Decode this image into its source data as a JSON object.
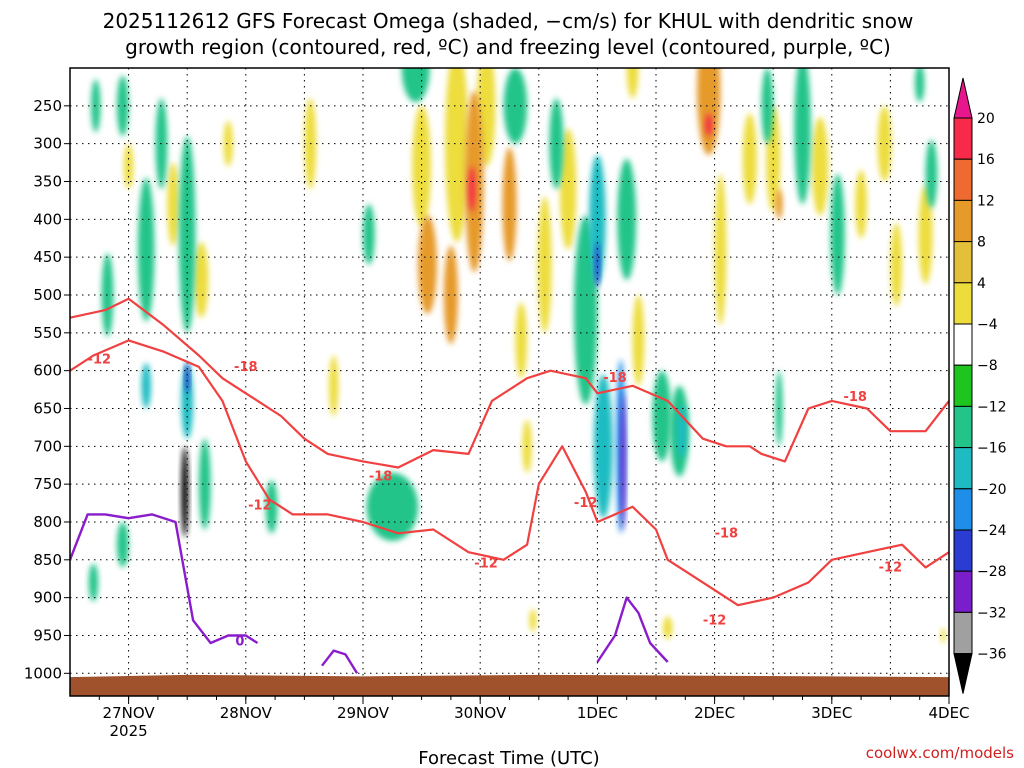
{
  "chart_data": {
    "type": "heatmap",
    "title_line1": "2025112612 GFS Forecast Omega (shaded, −cm/s) for KHUL with dendritic snow",
    "title_line2": "growth region (contoured, red, ºC) and freezing level (contoured, purple, ºC)",
    "xlabel": "Forecast Time (UTC)",
    "credit": "coolwx.com/models",
    "x_ticks": [
      {
        "label": "27NOV",
        "sub": "2025",
        "day": 27
      },
      {
        "label": "28NOV",
        "sub": "",
        "day": 28
      },
      {
        "label": "29NOV",
        "sub": "",
        "day": 29
      },
      {
        "label": "30NOV",
        "sub": "",
        "day": 30
      },
      {
        "label": "1DEC",
        "sub": "",
        "day": 31
      },
      {
        "label": "2DEC",
        "sub": "",
        "day": 32
      },
      {
        "label": "3DEC",
        "sub": "",
        "day": 33
      },
      {
        "label": "4DEC",
        "sub": "",
        "day": 34
      }
    ],
    "xlim": [
      26.5,
      34.0
    ],
    "y_ticks": [
      250,
      300,
      350,
      400,
      450,
      500,
      550,
      600,
      650,
      700,
      750,
      800,
      850,
      900,
      950,
      1000
    ],
    "ylim": [
      1030,
      200
    ],
    "colorbar": {
      "labels": [
        "20",
        "16",
        "12",
        "8",
        "4",
        "−4",
        "−8",
        "−12",
        "−16",
        "−20",
        "−24",
        "−28",
        "−32",
        "−36"
      ],
      "colors": [
        "#f72a4a",
        "#ee6a30",
        "#e69a2a",
        "#e3bf3a",
        "#eddd3c",
        "#ffffff",
        "#1ec51e",
        "#22c48a",
        "#1ebcc2",
        "#1e8ee8",
        "#2a3cd2",
        "#7a1ecc",
        "#9c10c8",
        "#a0a0a0"
      ],
      "top_color": "#e8168c",
      "bottom_color": "#000000"
    },
    "omega_blobs": [
      {
        "x": 26.72,
        "p": 250,
        "w": 0.04,
        "h": 70,
        "v": -8
      },
      {
        "x": 26.82,
        "p": 500,
        "w": 0.05,
        "h": 110,
        "v": -8
      },
      {
        "x": 26.95,
        "p": 250,
        "w": 0.05,
        "h": 80,
        "v": -8
      },
      {
        "x": 27.0,
        "p": 330,
        "w": 0.04,
        "h": 60,
        "v": 6
      },
      {
        "x": 27.15,
        "p": 440,
        "w": 0.07,
        "h": 190,
        "v": -8
      },
      {
        "x": 27.28,
        "p": 300,
        "w": 0.05,
        "h": 120,
        "v": -8
      },
      {
        "x": 27.38,
        "p": 380,
        "w": 0.05,
        "h": 110,
        "v": 6
      },
      {
        "x": 27.5,
        "p": 420,
        "w": 0.07,
        "h": 260,
        "v": -8
      },
      {
        "x": 27.5,
        "p": 640,
        "w": 0.05,
        "h": 100,
        "v": -12
      },
      {
        "x": 27.48,
        "p": 760,
        "w": 0.03,
        "h": 120,
        "v": -36
      },
      {
        "x": 27.5,
        "p": 610,
        "w": 0.02,
        "h": 40,
        "v": -20
      },
      {
        "x": 27.62,
        "p": 480,
        "w": 0.06,
        "h": 100,
        "v": 6
      },
      {
        "x": 27.65,
        "p": 750,
        "w": 0.05,
        "h": 120,
        "v": -8
      },
      {
        "x": 27.85,
        "p": 300,
        "w": 0.04,
        "h": 60,
        "v": 6
      },
      {
        "x": 27.15,
        "p": 620,
        "w": 0.04,
        "h": 60,
        "v": -12
      },
      {
        "x": 28.22,
        "p": 780,
        "w": 0.05,
        "h": 70,
        "v": -8
      },
      {
        "x": 28.55,
        "p": 300,
        "w": 0.05,
        "h": 120,
        "v": 6
      },
      {
        "x": 28.75,
        "p": 620,
        "w": 0.04,
        "h": 80,
        "v": 6
      },
      {
        "x": 29.05,
        "p": 420,
        "w": 0.05,
        "h": 80,
        "v": -8
      },
      {
        "x": 29.25,
        "p": 780,
        "w": 0.22,
        "h": 90,
        "v": -8
      },
      {
        "x": 29.5,
        "p": 330,
        "w": 0.08,
        "h": 160,
        "v": 6
      },
      {
        "x": 29.55,
        "p": 460,
        "w": 0.08,
        "h": 130,
        "v": 10
      },
      {
        "x": 29.45,
        "p": 200,
        "w": 0.12,
        "h": 90,
        "v": -8
      },
      {
        "x": 29.8,
        "p": 300,
        "w": 0.1,
        "h": 260,
        "v": 6
      },
      {
        "x": 29.75,
        "p": 500,
        "w": 0.06,
        "h": 130,
        "v": 10
      },
      {
        "x": 29.95,
        "p": 350,
        "w": 0.08,
        "h": 240,
        "v": 10
      },
      {
        "x": 29.93,
        "p": 360,
        "w": 0.03,
        "h": 60,
        "v": 16
      },
      {
        "x": 30.05,
        "p": 250,
        "w": 0.08,
        "h": 160,
        "v": 6
      },
      {
        "x": 30.25,
        "p": 380,
        "w": 0.06,
        "h": 150,
        "v": 10
      },
      {
        "x": 30.3,
        "p": 250,
        "w": 0.1,
        "h": 100,
        "v": -8
      },
      {
        "x": 30.35,
        "p": 560,
        "w": 0.05,
        "h": 100,
        "v": 6
      },
      {
        "x": 30.55,
        "p": 460,
        "w": 0.06,
        "h": 180,
        "v": 6
      },
      {
        "x": 30.4,
        "p": 700,
        "w": 0.04,
        "h": 70,
        "v": 6
      },
      {
        "x": 30.65,
        "p": 300,
        "w": 0.06,
        "h": 120,
        "v": -8
      },
      {
        "x": 30.75,
        "p": 360,
        "w": 0.07,
        "h": 160,
        "v": 6
      },
      {
        "x": 30.9,
        "p": 520,
        "w": 0.1,
        "h": 250,
        "v": -8
      },
      {
        "x": 31.0,
        "p": 400,
        "w": 0.07,
        "h": 170,
        "v": -12
      },
      {
        "x": 31.05,
        "p": 700,
        "w": 0.08,
        "h": 190,
        "v": -12
      },
      {
        "x": 31.0,
        "p": 460,
        "w": 0.02,
        "h": 60,
        "v": -20
      },
      {
        "x": 31.2,
        "p": 700,
        "w": 0.04,
        "h": 230,
        "v": -16
      },
      {
        "x": 31.22,
        "p": 720,
        "w": 0.02,
        "h": 180,
        "v": -24
      },
      {
        "x": 31.25,
        "p": 400,
        "w": 0.08,
        "h": 160,
        "v": -8
      },
      {
        "x": 31.3,
        "p": 200,
        "w": 0.05,
        "h": 80,
        "v": 6
      },
      {
        "x": 31.35,
        "p": 560,
        "w": 0.05,
        "h": 120,
        "v": 6
      },
      {
        "x": 31.55,
        "p": 660,
        "w": 0.08,
        "h": 120,
        "v": -8
      },
      {
        "x": 31.7,
        "p": 680,
        "w": 0.08,
        "h": 120,
        "v": -8
      },
      {
        "x": 31.72,
        "p": 680,
        "w": 0.04,
        "h": 70,
        "v": -12
      },
      {
        "x": 31.95,
        "p": 230,
        "w": 0.1,
        "h": 170,
        "v": 10
      },
      {
        "x": 31.95,
        "p": 275,
        "w": 0.03,
        "h": 30,
        "v": 16
      },
      {
        "x": 32.05,
        "p": 440,
        "w": 0.05,
        "h": 200,
        "v": 6
      },
      {
        "x": 32.3,
        "p": 320,
        "w": 0.06,
        "h": 120,
        "v": 6
      },
      {
        "x": 32.45,
        "p": 250,
        "w": 0.05,
        "h": 100,
        "v": -8
      },
      {
        "x": 32.5,
        "p": 320,
        "w": 0.06,
        "h": 140,
        "v": 6
      },
      {
        "x": 32.55,
        "p": 650,
        "w": 0.03,
        "h": 100,
        "v": -8
      },
      {
        "x": 32.55,
        "p": 380,
        "w": 0.03,
        "h": 40,
        "v": 10
      },
      {
        "x": 32.75,
        "p": 280,
        "w": 0.07,
        "h": 200,
        "v": -8
      },
      {
        "x": 32.9,
        "p": 330,
        "w": 0.07,
        "h": 130,
        "v": 6
      },
      {
        "x": 33.05,
        "p": 420,
        "w": 0.06,
        "h": 160,
        "v": -8
      },
      {
        "x": 33.25,
        "p": 380,
        "w": 0.05,
        "h": 90,
        "v": 6
      },
      {
        "x": 33.45,
        "p": 300,
        "w": 0.06,
        "h": 100,
        "v": 6
      },
      {
        "x": 33.55,
        "p": 460,
        "w": 0.05,
        "h": 110,
        "v": 6
      },
      {
        "x": 33.8,
        "p": 420,
        "w": 0.06,
        "h": 130,
        "v": 6
      },
      {
        "x": 33.75,
        "p": 220,
        "w": 0.04,
        "h": 50,
        "v": -8
      },
      {
        "x": 33.85,
        "p": 340,
        "w": 0.05,
        "h": 90,
        "v": -8
      },
      {
        "x": 33.95,
        "p": 950,
        "w": 0.02,
        "h": 20,
        "v": 6
      },
      {
        "x": 26.7,
        "p": 880,
        "w": 0.04,
        "h": 50,
        "v": -8
      },
      {
        "x": 26.95,
        "p": 830,
        "w": 0.05,
        "h": 60,
        "v": -8
      },
      {
        "x": 31.6,
        "p": 940,
        "w": 0.04,
        "h": 30,
        "v": 6
      },
      {
        "x": 30.45,
        "p": 930,
        "w": 0.03,
        "h": 30,
        "v": 6
      }
    ],
    "dgz_contours": [
      {
        "label": "-18",
        "label_x": 28.0,
        "label_p": 595,
        "points": [
          [
            26.5,
            530
          ],
          [
            26.8,
            520
          ],
          [
            27.0,
            505
          ],
          [
            27.3,
            540
          ],
          [
            27.6,
            580
          ],
          [
            27.8,
            610
          ],
          [
            28.0,
            630
          ],
          [
            28.3,
            660
          ],
          [
            28.5,
            690
          ],
          [
            28.7,
            710
          ],
          [
            29.0,
            720
          ],
          [
            29.3,
            728
          ],
          [
            29.6,
            705
          ],
          [
            29.9,
            710
          ],
          [
            30.1,
            640
          ],
          [
            30.4,
            610
          ],
          [
            30.6,
            600
          ],
          [
            30.9,
            610
          ],
          [
            31.0,
            630
          ],
          [
            31.3,
            620
          ],
          [
            31.6,
            640
          ],
          [
            31.9,
            690
          ],
          [
            32.1,
            700
          ],
          [
            32.3,
            700
          ],
          [
            32.4,
            710
          ],
          [
            32.6,
            720
          ],
          [
            32.8,
            650
          ],
          [
            33.0,
            640
          ],
          [
            33.3,
            650
          ],
          [
            33.5,
            680
          ],
          [
            33.8,
            680
          ],
          [
            34.0,
            640
          ]
        ]
      },
      {
        "label": "-12",
        "label_x": 26.75,
        "label_p": 585,
        "points": [
          [
            26.5,
            600
          ],
          [
            26.7,
            580
          ],
          [
            27.0,
            560
          ],
          [
            27.3,
            575
          ],
          [
            27.6,
            595
          ],
          [
            27.8,
            640
          ],
          [
            28.0,
            720
          ],
          [
            28.2,
            770
          ],
          [
            28.4,
            790
          ],
          [
            28.7,
            790
          ],
          [
            29.0,
            800
          ],
          [
            29.3,
            815
          ],
          [
            29.6,
            810
          ],
          [
            29.9,
            840
          ],
          [
            30.2,
            850
          ],
          [
            30.4,
            830
          ],
          [
            30.5,
            750
          ],
          [
            30.7,
            700
          ],
          [
            30.9,
            760
          ],
          [
            31.0,
            800
          ],
          [
            31.3,
            780
          ],
          [
            31.5,
            810
          ],
          [
            31.6,
            850
          ],
          [
            31.8,
            870
          ],
          [
            32.0,
            890
          ],
          [
            32.2,
            910
          ],
          [
            32.5,
            900
          ],
          [
            32.8,
            880
          ],
          [
            33.0,
            850
          ],
          [
            33.3,
            840
          ],
          [
            33.6,
            830
          ],
          [
            33.8,
            860
          ],
          [
            34.0,
            840
          ]
        ]
      }
    ],
    "dgz_labels": [
      {
        "label": "-18",
        "x": 28.0,
        "p": 595
      },
      {
        "label": "-12",
        "x": 26.75,
        "p": 585
      },
      {
        "label": "-12",
        "x": 28.12,
        "p": 778
      },
      {
        "label": "-18",
        "x": 29.15,
        "p": 740
      },
      {
        "label": "-12",
        "x": 30.05,
        "p": 855
      },
      {
        "label": "-18",
        "x": 31.15,
        "p": 610
      },
      {
        "label": "-12",
        "x": 30.9,
        "p": 775
      },
      {
        "label": "-18",
        "x": 32.1,
        "p": 815
      },
      {
        "label": "-12",
        "x": 32.0,
        "p": 930
      },
      {
        "label": "-18",
        "x": 33.2,
        "p": 635
      },
      {
        "label": "-12",
        "x": 33.5,
        "p": 860
      }
    ],
    "freezing_level": {
      "label": "0",
      "segments": [
        [
          [
            26.5,
            850
          ],
          [
            26.65,
            790
          ],
          [
            26.8,
            790
          ],
          [
            27.0,
            795
          ],
          [
            27.2,
            790
          ],
          [
            27.4,
            800
          ],
          [
            27.55,
            930
          ],
          [
            27.7,
            960
          ],
          [
            27.85,
            950
          ],
          [
            28.0,
            950
          ],
          [
            28.1,
            960
          ]
        ],
        [
          [
            28.65,
            990
          ],
          [
            28.75,
            970
          ],
          [
            28.85,
            975
          ],
          [
            28.95,
            1000
          ]
        ],
        [
          [
            31.0,
            985
          ],
          [
            31.15,
            950
          ],
          [
            31.25,
            900
          ],
          [
            31.35,
            920
          ],
          [
            31.45,
            960
          ],
          [
            31.6,
            985
          ]
        ]
      ],
      "label_x": 27.95,
      "label_p": 958
    }
  }
}
